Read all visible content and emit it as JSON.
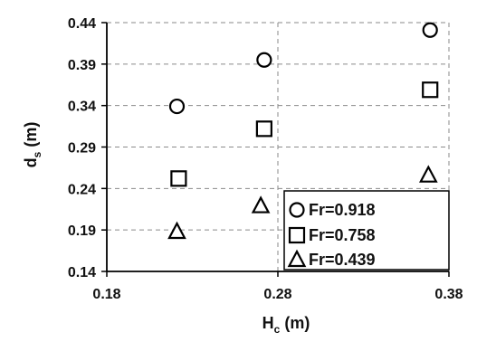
{
  "chart_data": {
    "type": "scatter",
    "title": "",
    "xlabel": "H",
    "xlabel_sub": "c",
    "xlabel_unit": " (m)",
    "ylabel": "d",
    "ylabel_sub": "s",
    "ylabel_unit": " (m)",
    "xlim": [
      0.18,
      0.38
    ],
    "ylim": [
      0.14,
      0.44
    ],
    "x_ticks": [
      "0.18",
      "0.28",
      "0.38"
    ],
    "y_ticks": [
      "0.14",
      "0.19",
      "0.24",
      "0.29",
      "0.34",
      "0.39",
      "0.44"
    ],
    "grid": true,
    "legend_position": "bottom-right",
    "series": [
      {
        "name": "Fr=0.918",
        "marker": "circle",
        "points": [
          {
            "x": 0.221,
            "y": 0.339
          },
          {
            "x": 0.272,
            "y": 0.395
          },
          {
            "x": 0.369,
            "y": 0.431
          }
        ]
      },
      {
        "name": "Fr=0.758",
        "marker": "square",
        "points": [
          {
            "x": 0.222,
            "y": 0.252
          },
          {
            "x": 0.272,
            "y": 0.312
          },
          {
            "x": 0.369,
            "y": 0.359
          }
        ]
      },
      {
        "name": "Fr=0.439",
        "marker": "triangle",
        "points": [
          {
            "x": 0.221,
            "y": 0.188
          },
          {
            "x": 0.27,
            "y": 0.219
          },
          {
            "x": 0.368,
            "y": 0.256
          }
        ]
      }
    ]
  }
}
